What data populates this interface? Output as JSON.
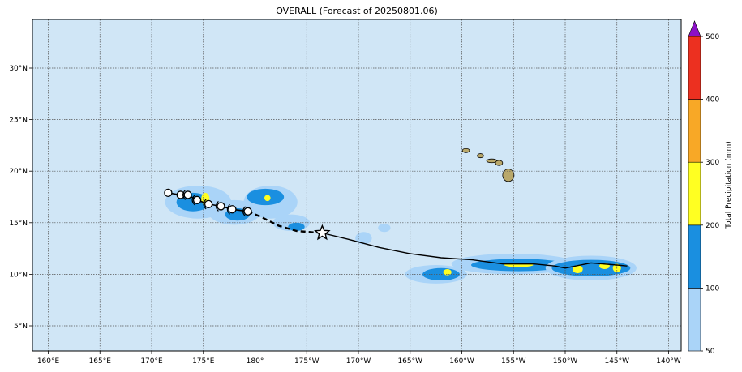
{
  "title": "OVERALL (Forecast of 20250801.06)",
  "map": {
    "ocean_color": "#d0e6f6",
    "lon_ticks": [
      {
        "lon": 160,
        "label": "160°E"
      },
      {
        "lon": 165,
        "label": "165°E"
      },
      {
        "lon": 170,
        "label": "170°E"
      },
      {
        "lon": 175,
        "label": "175°E"
      },
      {
        "lon": 180,
        "label": "180°"
      },
      {
        "lon": 185,
        "label": "175°W"
      },
      {
        "lon": 190,
        "label": "170°W"
      },
      {
        "lon": 195,
        "label": "165°W"
      },
      {
        "lon": 200,
        "label": "160°W"
      },
      {
        "lon": 205,
        "label": "155°W"
      },
      {
        "lon": 210,
        "label": "150°W"
      },
      {
        "lon": 215,
        "label": "145°W"
      },
      {
        "lon": 220,
        "label": "140°W"
      }
    ],
    "lat_ticks": [
      {
        "lat": 5,
        "label": "5°N"
      },
      {
        "lat": 10,
        "label": "10°N"
      },
      {
        "lat": 15,
        "label": "15°N"
      },
      {
        "lat": 20,
        "label": "20°N"
      },
      {
        "lat": 25,
        "label": "25°N"
      },
      {
        "lat": 30,
        "label": "30°N"
      }
    ],
    "gridlines": true
  },
  "colorbar": {
    "label": "Total Precipitation (mm)",
    "levels": [
      {
        "value": "50",
        "color": "#aad4f8"
      },
      {
        "value": "100",
        "color": "#1a8fe0"
      },
      {
        "value": "200",
        "color": "#ffff22"
      },
      {
        "value": "300",
        "color": "#f8a826"
      },
      {
        "value": "400",
        "color": "#ec3020"
      },
      {
        "value": "500",
        "color": "#8c10c8"
      }
    ]
  },
  "track": {
    "analysis_points": [
      {
        "lon": 171.6,
        "lat": 17.9
      },
      {
        "lon": 172.8,
        "lat": 17.7
      },
      {
        "lon": 173.5,
        "lat": 17.7
      },
      {
        "lon": 174.4,
        "lat": 17.2
      },
      {
        "lon": 175.5,
        "lat": 16.8
      },
      {
        "lon": 176.7,
        "lat": 16.6
      },
      {
        "lon": 177.8,
        "lat": 16.3
      },
      {
        "lon": 179.3,
        "lat": 16.1
      }
    ],
    "forecast_dashed": [
      {
        "lon": 179.3,
        "lat": 16.1
      },
      {
        "lon": 180.5,
        "lat": 15.6
      },
      {
        "lon": 182.3,
        "lat": 14.7
      },
      {
        "lon": 184.0,
        "lat": 14.2
      },
      {
        "lon": 186.5,
        "lat": 14.0
      }
    ],
    "forecast_solid": [
      {
        "lon": 186.5,
        "lat": 14.0
      },
      {
        "lon": 189.0,
        "lat": 13.4
      },
      {
        "lon": 192.0,
        "lat": 12.6
      },
      {
        "lon": 195.0,
        "lat": 12.0
      },
      {
        "lon": 198.0,
        "lat": 11.6
      },
      {
        "lon": 201.0,
        "lat": 11.4
      },
      {
        "lon": 204.0,
        "lat": 11.0
      },
      {
        "lon": 207.0,
        "lat": 11.0
      },
      {
        "lon": 209.0,
        "lat": 10.8
      },
      {
        "lon": 210.0,
        "lat": 10.6
      },
      {
        "lon": 211.0,
        "lat": 10.8
      },
      {
        "lon": 212.5,
        "lat": 11.1
      },
      {
        "lon": 215.0,
        "lat": 10.9
      },
      {
        "lon": 216.0,
        "lat": 10.8
      }
    ],
    "star_point": {
      "lon": 186.5,
      "lat": 14.0
    }
  },
  "precip_blobs": [
    {
      "lon": 174.5,
      "lat": 17.0,
      "rx": 3.2,
      "ry": 1.6,
      "level": 0
    },
    {
      "lon": 174.0,
      "lat": 17.0,
      "rx": 1.6,
      "ry": 0.9,
      "level": 1
    },
    {
      "lon": 175.2,
      "lat": 17.3,
      "rx": 0.4,
      "ry": 0.6,
      "level": 2
    },
    {
      "lon": 178.0,
      "lat": 16.0,
      "rx": 2.5,
      "ry": 1.2,
      "level": 0
    },
    {
      "lon": 178.3,
      "lat": 15.8,
      "rx": 1.2,
      "ry": 0.6,
      "level": 1
    },
    {
      "lon": 181.5,
      "lat": 17.0,
      "rx": 2.6,
      "ry": 1.6,
      "level": 0
    },
    {
      "lon": 181.0,
      "lat": 17.5,
      "rx": 1.8,
      "ry": 0.8,
      "level": 1
    },
    {
      "lon": 181.2,
      "lat": 17.4,
      "rx": 0.3,
      "ry": 0.3,
      "level": 2
    },
    {
      "lon": 183.5,
      "lat": 15.0,
      "rx": 1.8,
      "ry": 0.8,
      "level": 0
    },
    {
      "lon": 184.0,
      "lat": 14.6,
      "rx": 0.8,
      "ry": 0.4,
      "level": 1
    },
    {
      "lon": 190.5,
      "lat": 13.5,
      "rx": 0.8,
      "ry": 0.6,
      "level": 0
    },
    {
      "lon": 192.5,
      "lat": 14.5,
      "rx": 0.6,
      "ry": 0.4,
      "level": 0
    },
    {
      "lon": 197.5,
      "lat": 10.0,
      "rx": 3.0,
      "ry": 0.9,
      "level": 0
    },
    {
      "lon": 198.0,
      "lat": 10.0,
      "rx": 1.8,
      "ry": 0.6,
      "level": 1
    },
    {
      "lon": 198.6,
      "lat": 10.2,
      "rx": 0.4,
      "ry": 0.3,
      "level": 2
    },
    {
      "lon": 205.0,
      "lat": 11.0,
      "rx": 6.0,
      "ry": 1.0,
      "level": 0
    },
    {
      "lon": 205.5,
      "lat": 10.9,
      "rx": 4.6,
      "ry": 0.6,
      "level": 1
    },
    {
      "lon": 205.5,
      "lat": 10.9,
      "rx": 1.4,
      "ry": 0.2,
      "level": 2
    },
    {
      "lon": 212.5,
      "lat": 10.6,
      "rx": 4.4,
      "ry": 1.2,
      "level": 0
    },
    {
      "lon": 212.5,
      "lat": 10.6,
      "rx": 3.8,
      "ry": 0.8,
      "level": 1
    },
    {
      "lon": 211.2,
      "lat": 10.5,
      "rx": 0.5,
      "ry": 0.4,
      "level": 2
    },
    {
      "lon": 213.8,
      "lat": 10.8,
      "rx": 0.5,
      "ry": 0.3,
      "level": 2
    },
    {
      "lon": 215.0,
      "lat": 10.6,
      "rx": 0.4,
      "ry": 0.4,
      "level": 2
    }
  ],
  "islands": [
    {
      "lon": 200.4,
      "lat": 22.0,
      "rx": 0.35,
      "ry": 0.2
    },
    {
      "lon": 201.8,
      "lat": 21.5,
      "rx": 0.3,
      "ry": 0.2
    },
    {
      "lon": 202.9,
      "lat": 21.0,
      "rx": 0.5,
      "ry": 0.18
    },
    {
      "lon": 203.6,
      "lat": 20.8,
      "rx": 0.35,
      "ry": 0.25
    },
    {
      "lon": 204.5,
      "lat": 19.6,
      "rx": 0.55,
      "ry": 0.6
    }
  ]
}
